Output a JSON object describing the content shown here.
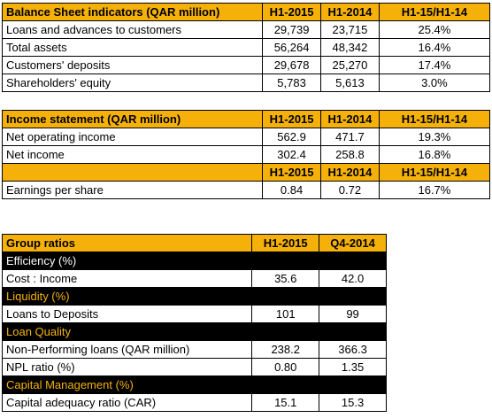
{
  "balance_sheet": {
    "header": [
      "Balance Sheet indicators (QAR million)",
      "H1-2015",
      "H1-2014",
      "H1-15/H1-14"
    ],
    "rows": [
      [
        "Loans and advances to customers",
        "29,739",
        "23,715",
        "25.4%"
      ],
      [
        "Total assets",
        "56,264",
        "48,342",
        "16.4%"
      ],
      [
        "Customers' deposits",
        "29,678",
        "25,270",
        "17.4%"
      ],
      [
        "Shareholders' equity",
        "5,783",
        "5,613",
        "3.0%"
      ]
    ]
  },
  "income_statement": {
    "header": [
      "Income statement (QAR million)",
      "H1-2015",
      "H1-2014",
      "H1-15/H1-14"
    ],
    "rows": [
      [
        "Net operating income",
        "562.9",
        "471.7",
        "19.3%"
      ],
      [
        "Net income",
        "302.4",
        "258.8",
        "16.8%"
      ]
    ],
    "subheader": [
      "",
      "H1-2015",
      "H1-2014",
      "H1-15/H1-14"
    ],
    "eps_row": [
      "Earnings per share",
      "0.84",
      "0.72",
      "16.7%"
    ]
  },
  "group_ratios": {
    "header": [
      "Group ratios",
      "H1-2015",
      "Q4-2014"
    ],
    "sections": [
      {
        "title": "Efficiency (%)",
        "rows": [
          [
            "Cost : Income",
            "35.6",
            "42.0"
          ]
        ]
      },
      {
        "title": "Liquidity (%)",
        "rows": [
          [
            "Loans to Deposits",
            "101",
            "99"
          ]
        ]
      },
      {
        "title": "Loan Quality",
        "rows": [
          [
            "Non-Performing loans (QAR million)",
            "238.2",
            "366.3"
          ],
          [
            "NPL ratio (%)",
            "0.80",
            "1.35"
          ]
        ]
      },
      {
        "title": "Capital Management (%)",
        "rows": [
          [
            "Capital adequacy ratio (CAR)",
            "15.1",
            "15.3"
          ]
        ]
      }
    ]
  },
  "colors": {
    "header_bg": "#f5b10a",
    "section_bg": "#000000",
    "section_text_white": "#ffffff",
    "section_text_orange": "#f5b10a"
  }
}
